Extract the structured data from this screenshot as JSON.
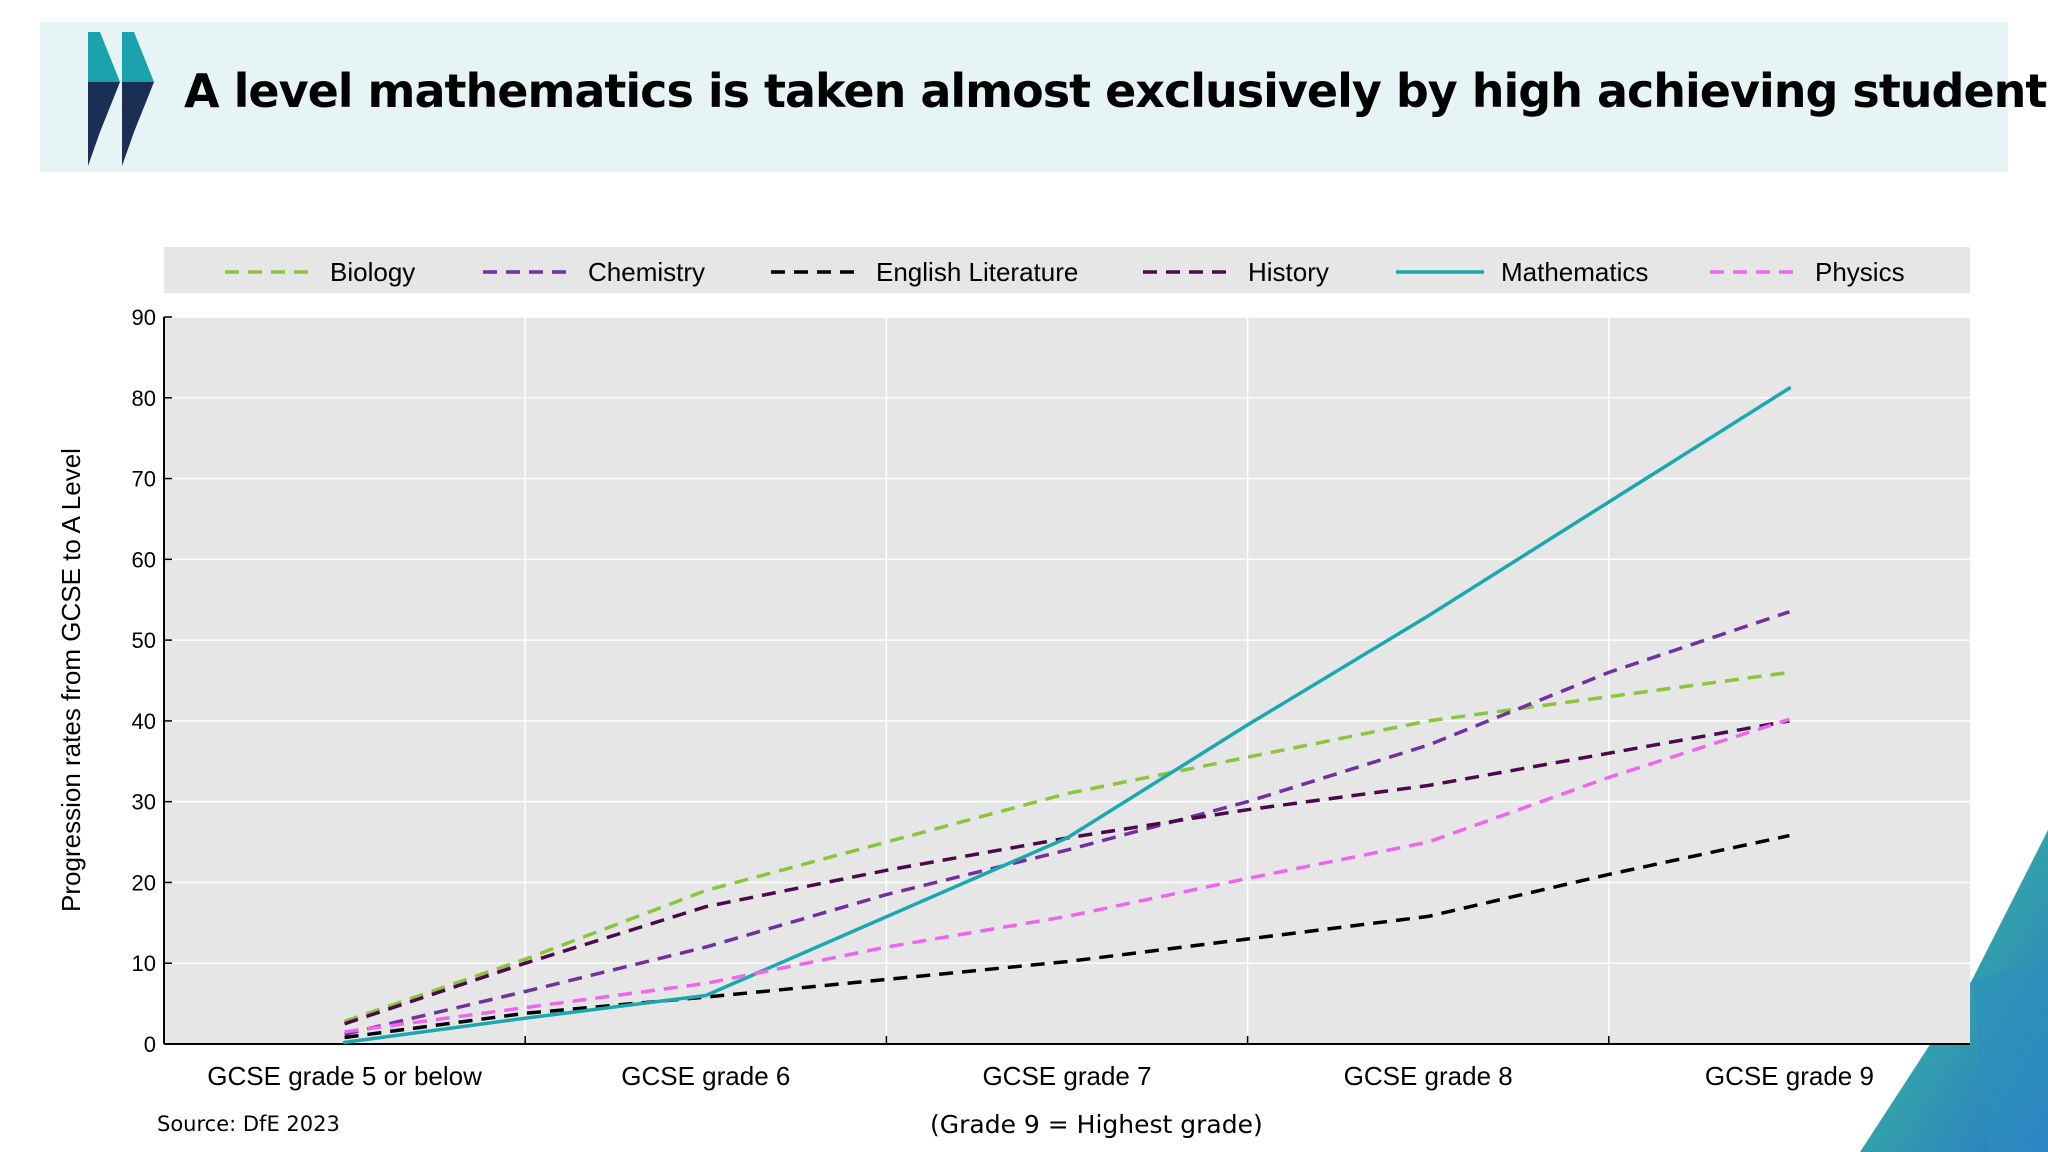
{
  "title": "A level mathematics is taken almost exclusively by high achieving students",
  "source": "Source: DfE 2023",
  "x_caption": "(Grade 9 = Highest grade)",
  "chart_data": {
    "type": "line",
    "title": "",
    "xlabel": "",
    "ylabel": "Progression rates from GCSE to A Level",
    "ylim": [
      0,
      90
    ],
    "yticks": [
      0,
      10,
      20,
      30,
      40,
      50,
      60,
      70,
      80,
      90
    ],
    "categories": [
      "GCSE grade 5 or below",
      "GCSE grade 6",
      "GCSE grade 7",
      "GCSE grade 8",
      "GCSE grade 9"
    ],
    "x": [
      1,
      2,
      3,
      4,
      5
    ],
    "grid": true,
    "legend_position": "top",
    "series": [
      {
        "name": "Biology",
        "color": "#8cc43c",
        "dash": "dashed",
        "x": [
          1,
          1.5,
          2,
          2.5,
          3,
          3.5,
          4,
          4.5,
          5
        ],
        "values": [
          2.8,
          10.5,
          19,
          25,
          31,
          35.5,
          40,
          43,
          46
        ]
      },
      {
        "name": "Chemistry",
        "color": "#7030a0",
        "dash": "dashed",
        "x": [
          1,
          1.5,
          2,
          2.5,
          3,
          3.5,
          4,
          4.5,
          5
        ],
        "values": [
          1.2,
          6.5,
          12,
          18.5,
          24,
          30,
          37,
          46,
          53.5
        ]
      },
      {
        "name": "English Literature",
        "color": "#000000",
        "dash": "dashed",
        "x": [
          1,
          1.5,
          2,
          2.5,
          3,
          3.5,
          4,
          4.5,
          5
        ],
        "values": [
          0.8,
          3.8,
          5.8,
          8,
          10.2,
          13,
          15.8,
          21,
          25.8
        ]
      },
      {
        "name": "History",
        "color": "#4a0a4a",
        "dash": "dashed",
        "x": [
          1,
          1.5,
          2,
          2.5,
          3,
          3.5,
          4,
          4.5,
          5
        ],
        "values": [
          2.5,
          10,
          17,
          21.5,
          25.5,
          29,
          32,
          36,
          40
        ]
      },
      {
        "name": "Mathematics",
        "color": "#1aa8b0",
        "dash": "solid",
        "x": [
          1,
          1.5,
          2,
          3,
          3.5,
          4,
          5
        ],
        "values": [
          0.2,
          3.2,
          6,
          25.5,
          39.5,
          53,
          81.2
        ]
      },
      {
        "name": "Physics",
        "color": "#ee66ee",
        "dash": "dashed",
        "x": [
          1,
          1.5,
          2,
          2.5,
          3,
          3.5,
          4,
          4.5,
          5
        ],
        "values": [
          1.5,
          4.5,
          7.5,
          12,
          15.8,
          20.5,
          25,
          33,
          40.2
        ]
      }
    ]
  }
}
